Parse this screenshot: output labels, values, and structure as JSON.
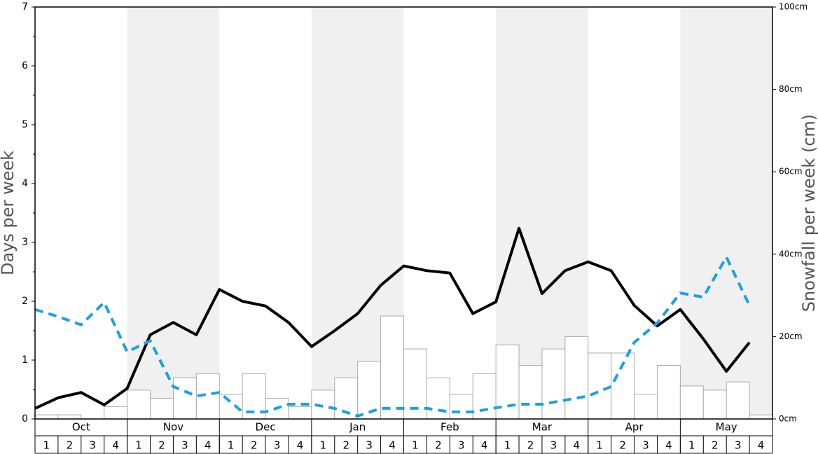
{
  "chart_data": {
    "type": "bar-line",
    "ylabel": "Days per week",
    "y2label": "Snowfall per week (cm)",
    "months": [
      "Oct",
      "Nov",
      "Dec",
      "Jan",
      "Feb",
      "Mar",
      "Apr",
      "May"
    ],
    "month_colors": [
      "#ffffff",
      "#f0f0f0",
      "#ffffff",
      "#f0f0f0",
      "#ffffff",
      "#f0f0f0",
      "#ffffff",
      "#f0f0f0"
    ],
    "categories": [
      "1",
      "2",
      "3",
      "4",
      "1",
      "2",
      "3",
      "4",
      "1",
      "2",
      "3",
      "4",
      "1",
      "2",
      "3",
      "4",
      "1",
      "2",
      "3",
      "4",
      "1",
      "2",
      "3",
      "4",
      "1",
      "2",
      "3",
      "4",
      "1",
      "2",
      "3",
      "4"
    ],
    "ylim": [
      0,
      7
    ],
    "yticks": [
      0,
      1,
      2,
      3,
      4,
      5,
      6,
      7
    ],
    "yminorticks": [
      0.5,
      1.5,
      2.5,
      3.5,
      4.5,
      5.5,
      6.5
    ],
    "y2lim": [
      0,
      100
    ],
    "y2ticks": [
      {
        "value": 0,
        "label": "0cm"
      },
      {
        "value": 20,
        "label": "20cm"
      },
      {
        "value": 40,
        "label": "40cm"
      },
      {
        "value": 60,
        "label": "60cm"
      },
      {
        "value": 80,
        "label": "80cm"
      },
      {
        "value": 100,
        "label": "100cm"
      }
    ],
    "series": [
      {
        "type": "bar",
        "axis": "y2",
        "color": "#ffffff",
        "edgecolor": "#aaaaaa",
        "values": [
          1,
          1,
          0,
          3,
          7,
          5,
          10,
          11,
          6,
          11,
          5,
          3,
          7,
          10,
          14,
          25,
          17,
          10,
          6,
          11,
          18,
          13,
          17,
          20,
          16,
          16,
          6,
          13,
          8,
          7,
          9,
          1
        ]
      },
      {
        "type": "line",
        "axis": "y",
        "color": "#000000",
        "linestyle": "solid",
        "values": [
          0.18,
          0.36,
          0.45,
          0.24,
          0.52,
          1.43,
          1.64,
          1.43,
          2.2,
          2.0,
          1.92,
          1.64,
          1.23,
          1.5,
          1.79,
          2.27,
          2.6,
          2.52,
          2.48,
          1.79,
          1.99,
          3.24,
          2.13,
          2.52,
          2.67,
          2.52,
          1.93,
          1.58,
          1.86,
          1.36,
          0.81,
          1.3
        ]
      },
      {
        "type": "line",
        "axis": "y",
        "color": "#1ba1e2",
        "linestyle": "dashed",
        "values": [
          1.86,
          1.74,
          1.6,
          1.98,
          1.14,
          1.33,
          0.55,
          0.39,
          0.45,
          0.12,
          0.12,
          0.25,
          0.25,
          0.18,
          0.05,
          0.18,
          0.18,
          0.18,
          0.12,
          0.12,
          0.19,
          0.25,
          0.25,
          0.32,
          0.39,
          0.55,
          1.3,
          1.63,
          2.14,
          2.07,
          2.75,
          1.93
        ]
      }
    ]
  }
}
